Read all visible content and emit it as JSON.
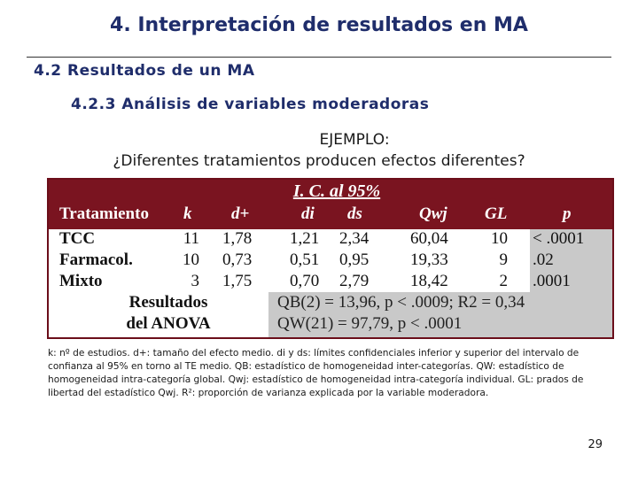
{
  "title": "4. Interpretación de resultados en MA",
  "section": "4.2 Resultados de un MA",
  "subsection": "4.2.3 Análisis de variables moderadoras",
  "example_label": "EJEMPLO:",
  "example_question": "¿Diferentes tratamientos producen efectos diferentes?",
  "table": {
    "ic_header": "I. C. al 95%",
    "headers": [
      "Tratamiento",
      "k",
      "d+",
      "di",
      "ds",
      "Qwj",
      "GL",
      "p"
    ],
    "rows": [
      {
        "name": "TCC",
        "k": "11",
        "d": "1,78",
        "di": "1,21",
        "ds": "2,34",
        "q": "60,04",
        "gl": "10",
        "p": "< .0001"
      },
      {
        "name": "Farmacol.",
        "k": "10",
        "d": "0,73",
        "di": "0,51",
        "ds": "0,95",
        "q": "19,33",
        "gl": "9",
        "p": ".02"
      },
      {
        "name": "Mixto",
        "k": "3",
        "d": "1,75",
        "di": "0,70",
        "ds": "2,79",
        "q": "18,42",
        "gl": "2",
        "p": ".0001"
      }
    ],
    "anova_line1": "Resultados",
    "anova_line2": "del ANOVA",
    "qb_line": "QB(2) = 13,96, p < .0009; R2 = 0,34",
    "qw_line": "QW(21) = 97,79, p < .0001"
  },
  "note": "k: nº de estudios. d+: tamaño del efecto medio. di y ds: límites confidenciales inferior y superior del intervalo de confianza al 95% en torno al TE medio. QB: estadístico de homogeneidad inter-categorías. QW: estadístico de homogeneidad intra-categoría global. Qwj: estadístico de homogeneidad intra-categoría individual. GL: prados de libertad del estadístico Qwj. R²: proporción de varianza explicada por la variable moderadora.",
  "page_number": "29",
  "colors": {
    "header_bg": "#7a1420",
    "grey": "#c9c9c9",
    "title": "#1f2d6b"
  }
}
